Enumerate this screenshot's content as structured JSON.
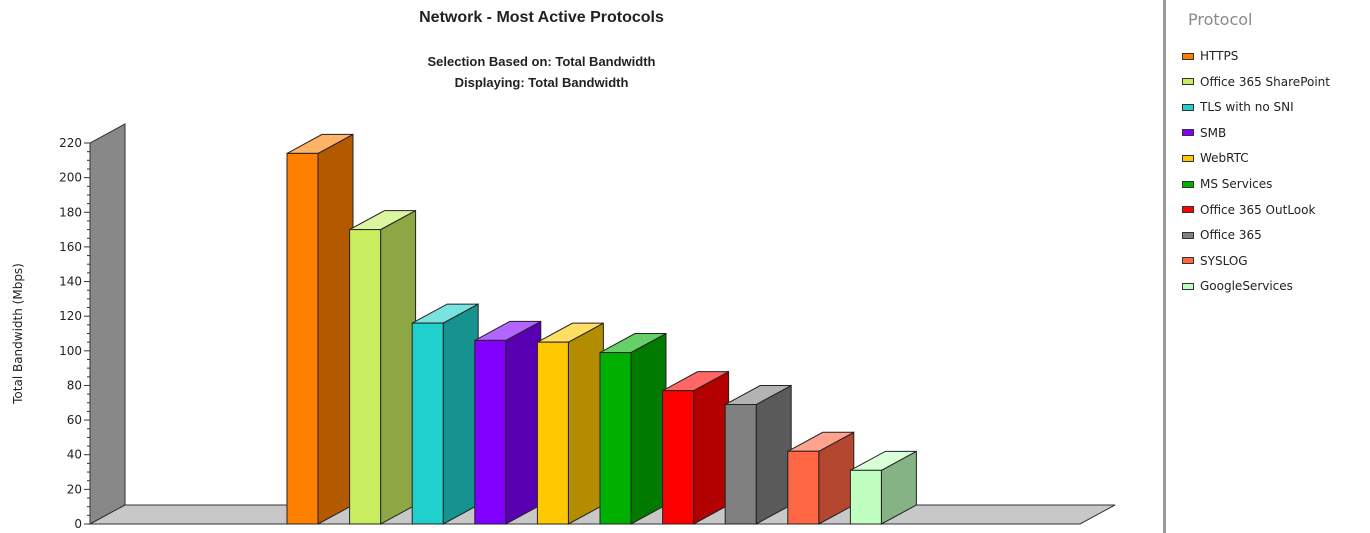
{
  "chart_data": {
    "type": "bar",
    "title": "Network - Most Active Protocols",
    "subtitle_lines": [
      "Selection Based on: Total Bandwidth",
      "Displaying: Total Bandwidth"
    ],
    "ylabel": "Total Bandwidth (Mbps)",
    "ylim": [
      0,
      220
    ],
    "yticks": [
      0,
      20,
      40,
      60,
      80,
      100,
      120,
      140,
      160,
      180,
      200,
      220
    ],
    "grid": false,
    "legend_title": "Protocol",
    "legend_position": "right",
    "categories": [
      "HTTPS",
      "Office 365 SharePoint",
      "TLS with no SNI",
      "SMB",
      "WebRTC",
      "MS Services",
      "Office 365 OutLook",
      "Office 365",
      "SYSLOG",
      "GoogleServices"
    ],
    "values": [
      214,
      170,
      116,
      106,
      105,
      99,
      77,
      69,
      42,
      31
    ],
    "colors": [
      "#ff8000",
      "#c8ee60",
      "#20d0cc",
      "#8000ff",
      "#ffc800",
      "#00b000",
      "#ff0000",
      "#808080",
      "#ff6644",
      "#c0ffc0"
    ]
  }
}
